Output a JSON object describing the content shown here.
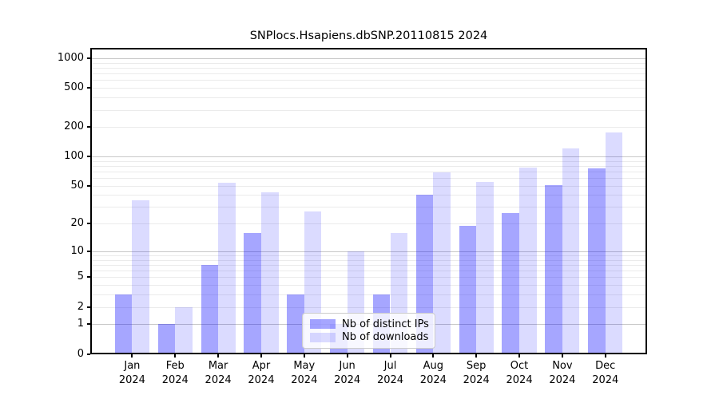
{
  "chart_data": {
    "type": "bar",
    "title": "SNPlocs.Hsapiens.dbSNP.20110815 2024",
    "categories": [
      "Jan",
      "Feb",
      "Mar",
      "Apr",
      "May",
      "Jun",
      "Jul",
      "Aug",
      "Sep",
      "Oct",
      "Nov",
      "Dec"
    ],
    "x_tick_sublabel": "2024",
    "series": [
      {
        "name": "Nb of distinct IPs",
        "color": "rgba(0,0,255,0.35)",
        "values": [
          3,
          1,
          7,
          16,
          3,
          1,
          3,
          40,
          19,
          26,
          51,
          75
        ]
      },
      {
        "name": "Nb of downloads",
        "color": "rgba(0,0,255,0.14)",
        "values": [
          35,
          2,
          54,
          43,
          27,
          10,
          16,
          68,
          55,
          77,
          120,
          175
        ]
      }
    ],
    "y_axis": {
      "scale": "log10(value+1)",
      "tick_values": [
        0,
        1,
        2,
        5,
        10,
        20,
        50,
        100,
        200,
        500,
        1000
      ],
      "range": [
        0,
        1000
      ],
      "major_grid_values": [
        1,
        10,
        100,
        1000
      ],
      "minor_grid_values": [
        2,
        3,
        4,
        5,
        6,
        7,
        8,
        9,
        20,
        30,
        40,
        50,
        60,
        70,
        80,
        90,
        200,
        300,
        400,
        500,
        600,
        700,
        800,
        900
      ]
    },
    "legend": {
      "position": "lower center",
      "entries": [
        "Nb of distinct IPs",
        "Nb of downloads"
      ]
    },
    "grid": true
  },
  "colors": {
    "background": "#ffffff",
    "bar_distinct_ips": "rgba(0,0,255,0.35)",
    "bar_downloads": "rgba(0,0,255,0.14)",
    "major_grid": "#c8c8c8",
    "minor_grid": "#ebebeb",
    "axis": "#000000",
    "text": "#000000",
    "legend_border": "#cccccc"
  }
}
